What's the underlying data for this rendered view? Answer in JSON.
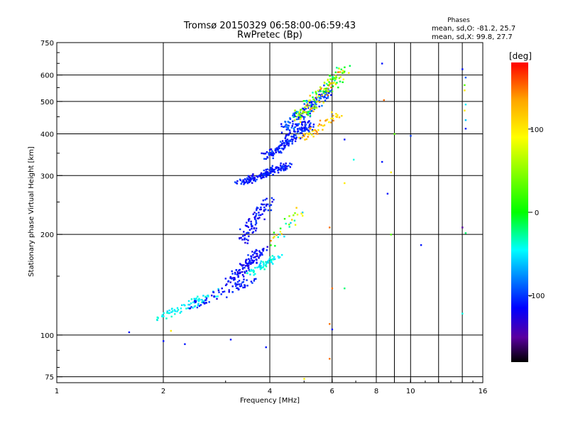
{
  "chart_data": {
    "type": "scatter",
    "title": "Tromsø 20150329 06:58:00-06:59:43",
    "subtitle": "RwPretec (Bp)",
    "xlabel": "Frequency [MHz]",
    "ylabel": "Stationary phase Virtual Height [km]",
    "x_scale": "log",
    "y_scale": "log",
    "xlim": [
      1,
      16
    ],
    "ylim": [
      72,
      750
    ],
    "x_ticks": [
      1,
      2,
      4,
      6,
      8,
      10,
      16
    ],
    "y_ticks": [
      75,
      100,
      200,
      300,
      400,
      500,
      600,
      750
    ],
    "grid": true,
    "phase_stats": {
      "heading": "Phases",
      "line_o": "mean, sd,O: -81.2, 25.7",
      "line_x": "mean, sd,X:  99.8, 27.7"
    },
    "colorbar": {
      "label": "[deg]",
      "range": [
        -180,
        180
      ],
      "ticks": [
        100,
        0,
        -100
      ],
      "stops": [
        {
          "v": -180,
          "color": "#000000"
        },
        {
          "v": -150,
          "color": "#5a00a0"
        },
        {
          "v": -115,
          "color": "#0000ff"
        },
        {
          "v": -45,
          "color": "#00ffff"
        },
        {
          "v": 0,
          "color": "#00ff00"
        },
        {
          "v": 90,
          "color": "#ffff00"
        },
        {
          "v": 135,
          "color": "#ffa500"
        },
        {
          "v": 180,
          "color": "#ff0000"
        }
      ]
    },
    "clusters": [
      {
        "f": [
          1.9,
          2.9
        ],
        "h": [
          108,
          140
        ],
        "n": 70,
        "ph": [
          -60,
          -35
        ]
      },
      {
        "f": [
          2.4,
          3.6
        ],
        "h": [
          118,
          150
        ],
        "n": 60,
        "ph": [
          -125,
          -95
        ]
      },
      {
        "f": [
          3.1,
          3.8
        ],
        "h": [
          140,
          185
        ],
        "n": 120,
        "ph": [
          -130,
          -100
        ]
      },
      {
        "f": [
          3.5,
          4.2
        ],
        "h": [
          150,
          175
        ],
        "n": 60,
        "ph": [
          -60,
          -30
        ]
      },
      {
        "f": [
          3.3,
          4.0
        ],
        "h": [
          185,
          260
        ],
        "n": 90,
        "ph": [
          -130,
          -95
        ]
      },
      {
        "f": [
          4.0,
          4.9
        ],
        "h": [
          180,
          245
        ],
        "n": 30,
        "ph": [
          -60,
          150
        ]
      },
      {
        "f": [
          3.3,
          4.5
        ],
        "h": [
          280,
          330
        ],
        "n": 160,
        "ph": [
          -125,
          -95
        ]
      },
      {
        "f": [
          3.9,
          5.2
        ],
        "h": [
          330,
          440
        ],
        "n": 160,
        "ph": [
          -125,
          -90
        ]
      },
      {
        "f": [
          4.4,
          5.9
        ],
        "h": [
          400,
          560
        ],
        "n": 160,
        "ph": [
          -120,
          -80
        ]
      },
      {
        "f": [
          4.8,
          6.5
        ],
        "h": [
          430,
          650
        ],
        "n": 150,
        "ph": [
          -40,
          150
        ]
      },
      {
        "f": [
          5.0,
          6.2
        ],
        "h": [
          380,
          470
        ],
        "n": 50,
        "ph": [
          90,
          150
        ]
      }
    ],
    "points": [
      {
        "f": 1.6,
        "h": 102,
        "ph": -110
      },
      {
        "f": 2.0,
        "h": 96,
        "ph": -110
      },
      {
        "f": 2.1,
        "h": 103,
        "ph": 100
      },
      {
        "f": 2.3,
        "h": 94,
        "ph": -110
      },
      {
        "f": 3.1,
        "h": 97,
        "ph": -110
      },
      {
        "f": 3.9,
        "h": 92,
        "ph": -110
      },
      {
        "f": 5.0,
        "h": 74,
        "ph": 100
      },
      {
        "f": 5.9,
        "h": 85,
        "ph": 150
      },
      {
        "f": 5.9,
        "h": 108,
        "ph": 150
      },
      {
        "f": 6.0,
        "h": 104,
        "ph": -110
      },
      {
        "f": 6.0,
        "h": 138,
        "ph": 150
      },
      {
        "f": 6.5,
        "h": 138,
        "ph": -20
      },
      {
        "f": 5.9,
        "h": 210,
        "ph": 150
      },
      {
        "f": 6.5,
        "h": 285,
        "ph": 100
      },
      {
        "f": 6.9,
        "h": 335,
        "ph": -40
      },
      {
        "f": 6.5,
        "h": 385,
        "ph": -110
      },
      {
        "f": 8.3,
        "h": 650,
        "ph": -110
      },
      {
        "f": 8.4,
        "h": 505,
        "ph": 150
      },
      {
        "f": 8.3,
        "h": 330,
        "ph": -110
      },
      {
        "f": 8.6,
        "h": 265,
        "ph": -110
      },
      {
        "f": 8.8,
        "h": 307,
        "ph": 100
      },
      {
        "f": 8.8,
        "h": 200,
        "ph": 30
      },
      {
        "f": 9.0,
        "h": 400,
        "ph": 30
      },
      {
        "f": 10.0,
        "h": 395,
        "ph": -100
      },
      {
        "f": 10.7,
        "h": 186,
        "ph": -110
      },
      {
        "f": 14.0,
        "h": 625,
        "ph": -110
      },
      {
        "f": 14.3,
        "h": 590,
        "ph": -90
      },
      {
        "f": 14.2,
        "h": 560,
        "ph": 30
      },
      {
        "f": 14.2,
        "h": 540,
        "ph": 100
      },
      {
        "f": 14.3,
        "h": 490,
        "ph": -50
      },
      {
        "f": 14.2,
        "h": 470,
        "ph": 100
      },
      {
        "f": 14.3,
        "h": 440,
        "ph": -60
      },
      {
        "f": 14.3,
        "h": 415,
        "ph": -110
      },
      {
        "f": 14.0,
        "h": 210,
        "ph": -150
      },
      {
        "f": 14.3,
        "h": 202,
        "ph": -20
      },
      {
        "f": 14.0,
        "h": 116,
        "ph": -40
      }
    ]
  }
}
